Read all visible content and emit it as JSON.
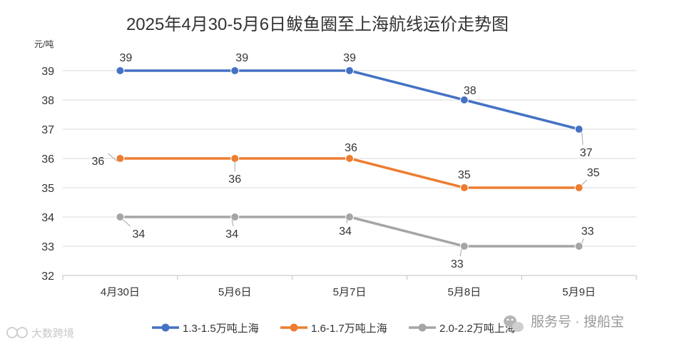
{
  "chart_data": {
    "type": "line",
    "title": "2025年4月30-5月6日鲅鱼圈至上海航线运价走势图",
    "ylabel": "元/吨",
    "xlabel": "",
    "ylim": [
      32,
      39
    ],
    "yticks": [
      32,
      33,
      34,
      35,
      36,
      37,
      38,
      39
    ],
    "grid": true,
    "legend": "bottom",
    "categories": [
      "4月30日",
      "5月6日",
      "5月7日",
      "5月8日",
      "5月9日"
    ],
    "series": [
      {
        "name": "1.3-1.5万吨上海",
        "color": "#4472c4",
        "values": [
          39,
          39,
          39,
          38,
          37
        ]
      },
      {
        "name": "1.6-1.7万吨上海",
        "color": "#ed7d31",
        "values": [
          36,
          36,
          36,
          35,
          35
        ]
      },
      {
        "name": "2.0-2.2万吨上海",
        "color": "#a5a5a5",
        "values": [
          34,
          34,
          34,
          33,
          33
        ]
      }
    ]
  },
  "watermarks": {
    "right": "服务号 · 搜船宝",
    "left": "大数跨境"
  }
}
